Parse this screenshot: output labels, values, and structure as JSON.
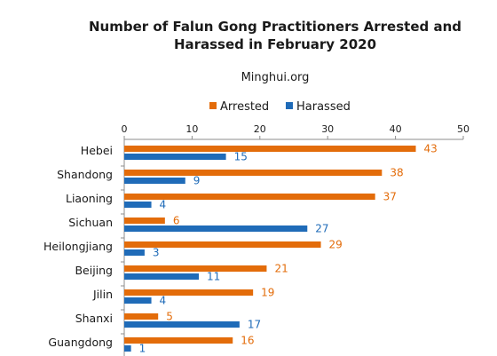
{
  "chart_data": {
    "type": "bar",
    "orientation": "horizontal",
    "title_lines": [
      "Number of Falun Gong Practitioners Arrested and",
      "Harassed in February 2020"
    ],
    "subtitle": "Minghui.org",
    "categories": [
      "Hebei",
      "Shandong",
      "Liaoning",
      "Sichuan",
      "Heilongjiang",
      "Beijing",
      "Jilin",
      "Shanxi",
      "Guangdong"
    ],
    "series": [
      {
        "name": "Arrested",
        "color": "#e36c0a",
        "values": [
          43,
          38,
          37,
          6,
          29,
          21,
          19,
          5,
          16
        ]
      },
      {
        "name": "Harassed",
        "color": "#1f6bb8",
        "values": [
          15,
          9,
          4,
          27,
          3,
          11,
          4,
          17,
          1
        ]
      }
    ],
    "xlim": [
      0,
      50
    ],
    "xticks": [
      0,
      10,
      20,
      30,
      40,
      50
    ],
    "axis_position": "top",
    "legend_position": "top",
    "grid": false,
    "data_labels": true
  }
}
